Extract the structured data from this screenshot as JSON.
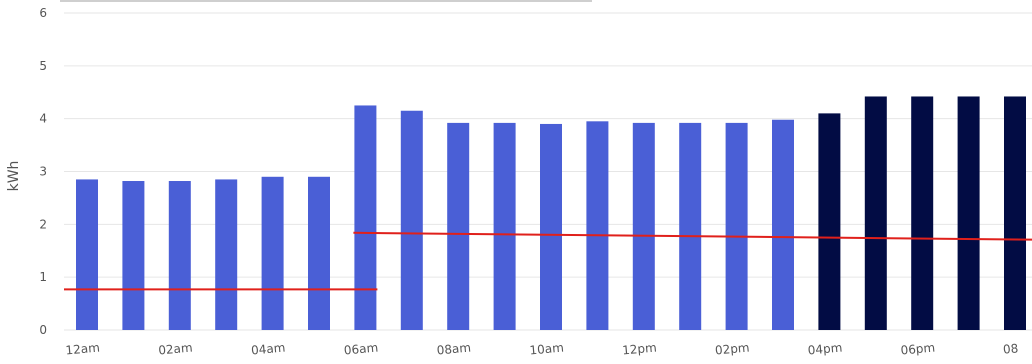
{
  "chart_data": {
    "type": "bar",
    "ylabel": "kWh",
    "ylim": [
      0,
      6
    ],
    "yticks": [
      "0",
      "1",
      "2",
      "3",
      "4",
      "5",
      "6"
    ],
    "grid": true,
    "categories": [
      "12am",
      "01am",
      "02am",
      "03am",
      "04am",
      "05am",
      "06am",
      "07am",
      "08am",
      "09am",
      "10am",
      "11am",
      "12pm",
      "01pm",
      "02pm",
      "03pm",
      "04pm",
      "05pm",
      "06pm",
      "07pm",
      "08pm"
    ],
    "x_tick_labels": [
      "12am",
      "02am",
      "04am",
      "06am",
      "08am",
      "10am",
      "12pm",
      "02pm",
      "04pm",
      "06pm",
      "08"
    ],
    "values": [
      2.85,
      2.82,
      2.82,
      2.85,
      2.9,
      2.9,
      4.25,
      4.15,
      3.92,
      3.92,
      3.9,
      3.95,
      3.92,
      3.92,
      3.92,
      3.98,
      4.1,
      4.42,
      4.42,
      4.42,
      4.42
    ],
    "bar_colors": [
      "#4a5fd6",
      "#4a5fd6",
      "#4a5fd6",
      "#4a5fd6",
      "#4a5fd6",
      "#4a5fd6",
      "#4a5fd6",
      "#4a5fd6",
      "#4a5fd6",
      "#4a5fd6",
      "#4a5fd6",
      "#4a5fd6",
      "#4a5fd6",
      "#4a5fd6",
      "#4a5fd6",
      "#4a5fd6",
      "#020c44",
      "#020c44",
      "#020c44",
      "#020c44",
      "#020c44"
    ],
    "reference_lines": [
      {
        "color": "#e0201b",
        "from_category": "12am",
        "to_category": "06am",
        "y_start": 0.77,
        "y_end": 0.77
      },
      {
        "color": "#e0201b",
        "from_category": "06am",
        "to_category": "08pm",
        "y_start": 1.84,
        "y_end": 1.71
      }
    ]
  }
}
